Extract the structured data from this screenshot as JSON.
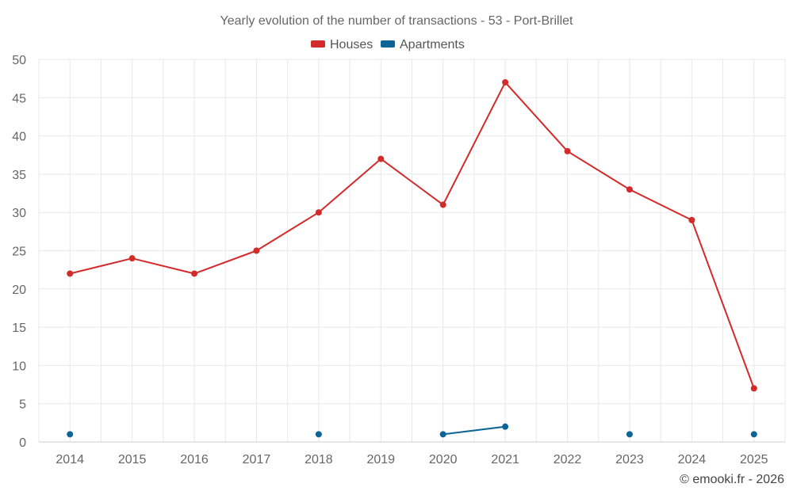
{
  "chart_data": {
    "type": "line",
    "title": "Yearly evolution of the number of transactions - 53 - Port-Brillet",
    "categories": [
      "2014",
      "2015",
      "2016",
      "2017",
      "2018",
      "2019",
      "2020",
      "2021",
      "2022",
      "2023",
      "2024",
      "2025"
    ],
    "series": [
      {
        "name": "Houses",
        "color": "#d32a2a",
        "values": [
          22,
          24,
          22,
          25,
          30,
          37,
          31,
          47,
          38,
          33,
          29,
          7
        ]
      },
      {
        "name": "Apartments",
        "color": "#0d6496",
        "values": [
          1,
          null,
          null,
          null,
          1,
          null,
          1,
          2,
          null,
          1,
          null,
          1
        ]
      }
    ],
    "ylim": [
      0,
      50
    ],
    "yticks": [
      0,
      5,
      10,
      15,
      20,
      25,
      30,
      35,
      40,
      45,
      50
    ],
    "xlabel": "",
    "ylabel": "",
    "grid": true,
    "legend_position": "top-center"
  },
  "credit": "© emooki.fr - 2026"
}
